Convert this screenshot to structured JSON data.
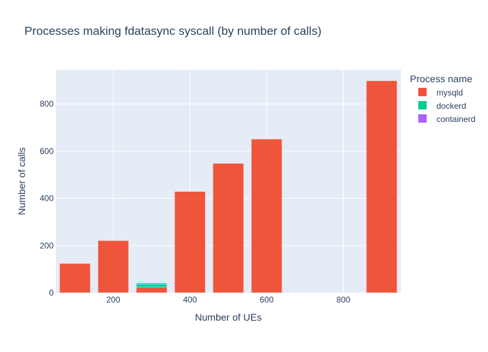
{
  "chart_data": {
    "type": "bar",
    "barmode": "stack",
    "title": "Processes making fdatasync syscall (by number of calls)",
    "xlabel": "Number of UEs",
    "ylabel": "Number of calls",
    "xlim": [
      50,
      950
    ],
    "ylim": [
      0,
      945
    ],
    "x_ticks": [
      200,
      400,
      600,
      800
    ],
    "y_ticks": [
      0,
      200,
      400,
      600,
      800
    ],
    "x_tick_labels": [
      "200",
      "400",
      "600",
      "800"
    ],
    "y_tick_labels": [
      "0",
      "200",
      "400",
      "600",
      "800"
    ],
    "grid": true,
    "legend_title": "Process name",
    "legend_position": "top-right",
    "x": [
      100,
      200,
      300,
      400,
      500,
      600,
      900
    ],
    "series": [
      {
        "name": "mysqld",
        "color": "#EF553B",
        "values": [
          124,
          221,
          24,
          429,
          548,
          651,
          898
        ]
      },
      {
        "name": "dockerd",
        "color": "#00CC96",
        "values": [
          0,
          0,
          12,
          0,
          0,
          0,
          0
        ]
      },
      {
        "name": "containerd",
        "color": "#AB63FA",
        "values": [
          0,
          0,
          0,
          0,
          0,
          0,
          0
        ]
      }
    ],
    "extra_segments": [
      {
        "x": 300,
        "base": 36,
        "value": 6,
        "color": "#19D3F3"
      }
    ]
  }
}
